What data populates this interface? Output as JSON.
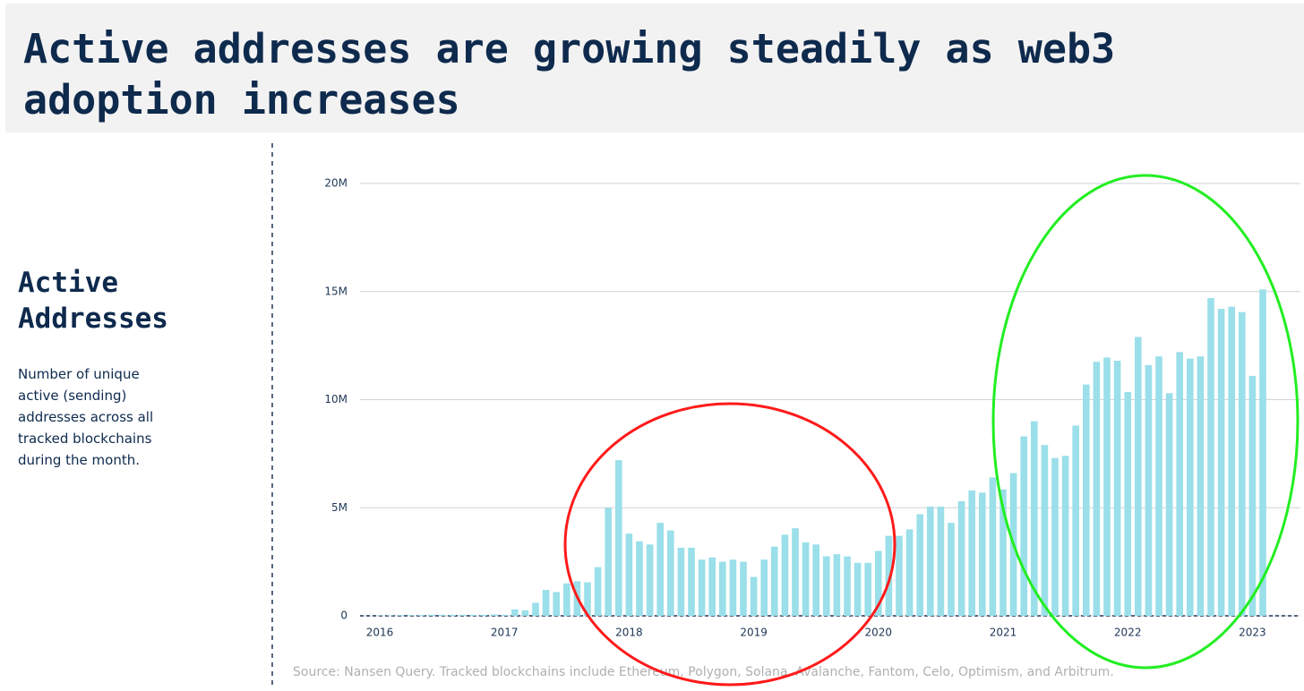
{
  "header": {
    "title": "Active addresses are growing steadily as web3 adoption increases"
  },
  "sidebar": {
    "heading": "Active Addresses",
    "description": "Number of unique active (sending) addresses across all tracked blockchains during the month."
  },
  "chart_data": {
    "type": "bar",
    "color": "#9adfe9",
    "categories": [
      "2016",
      null,
      null,
      null,
      null,
      null,
      null,
      null,
      null,
      null,
      null,
      null,
      "2017",
      null,
      null,
      null,
      null,
      null,
      null,
      null,
      null,
      null,
      null,
      null,
      "2018",
      null,
      null,
      null,
      null,
      null,
      null,
      null,
      null,
      null,
      null,
      null,
      "2019",
      null,
      null,
      null,
      null,
      null,
      null,
      null,
      null,
      null,
      null,
      null,
      "2020",
      null,
      null,
      null,
      null,
      null,
      null,
      null,
      null,
      null,
      null,
      null,
      "2021",
      null,
      null,
      null,
      null,
      null,
      null,
      null,
      null,
      null,
      null,
      null,
      "2022",
      null,
      null,
      null,
      null,
      null,
      null,
      null,
      null,
      null,
      null,
      null,
      "2023",
      null
    ],
    "values": [
      0.02,
      0.02,
      0.03,
      0.03,
      0.04,
      0.05,
      0.05,
      0.05,
      0.05,
      0.05,
      0.05,
      0.06,
      0.05,
      0.3,
      0.25,
      0.6,
      1.2,
      1.1,
      1.5,
      1.6,
      1.55,
      2.25,
      5.0,
      7.2,
      3.8,
      3.45,
      3.3,
      4.3,
      3.95,
      3.15,
      3.15,
      2.6,
      2.7,
      2.5,
      2.6,
      2.5,
      1.8,
      2.6,
      3.2,
      3.75,
      4.05,
      3.4,
      3.3,
      2.75,
      2.85,
      2.75,
      2.45,
      2.45,
      3.0,
      3.7,
      3.7,
      4.0,
      4.7,
      5.05,
      5.05,
      4.3,
      5.3,
      5.8,
      5.7,
      6.4,
      5.85,
      6.6,
      8.3,
      9.0,
      7.9,
      7.3,
      7.4,
      8.8,
      10.7,
      11.75,
      11.95,
      11.8,
      10.35,
      12.9,
      11.6,
      12.0,
      10.3,
      12.2,
      11.9,
      12.0,
      14.7,
      14.2,
      14.3,
      14.05,
      11.1,
      15.1
    ],
    "ylim": [
      0,
      20
    ],
    "yticks": [
      0,
      {
        "value": 5,
        "label": "5M"
      },
      {
        "value": 10,
        "label": "10M"
      },
      {
        "value": 15,
        "label": "15M"
      },
      {
        "value": 20,
        "label": "20M"
      }
    ],
    "grid": true,
    "source": "Source: Nansen Query. Tracked blockchains include Ethereum, Polygon, Solana, Avalanche, Fantom, Celo, Optimism, and Arbitrum."
  }
}
